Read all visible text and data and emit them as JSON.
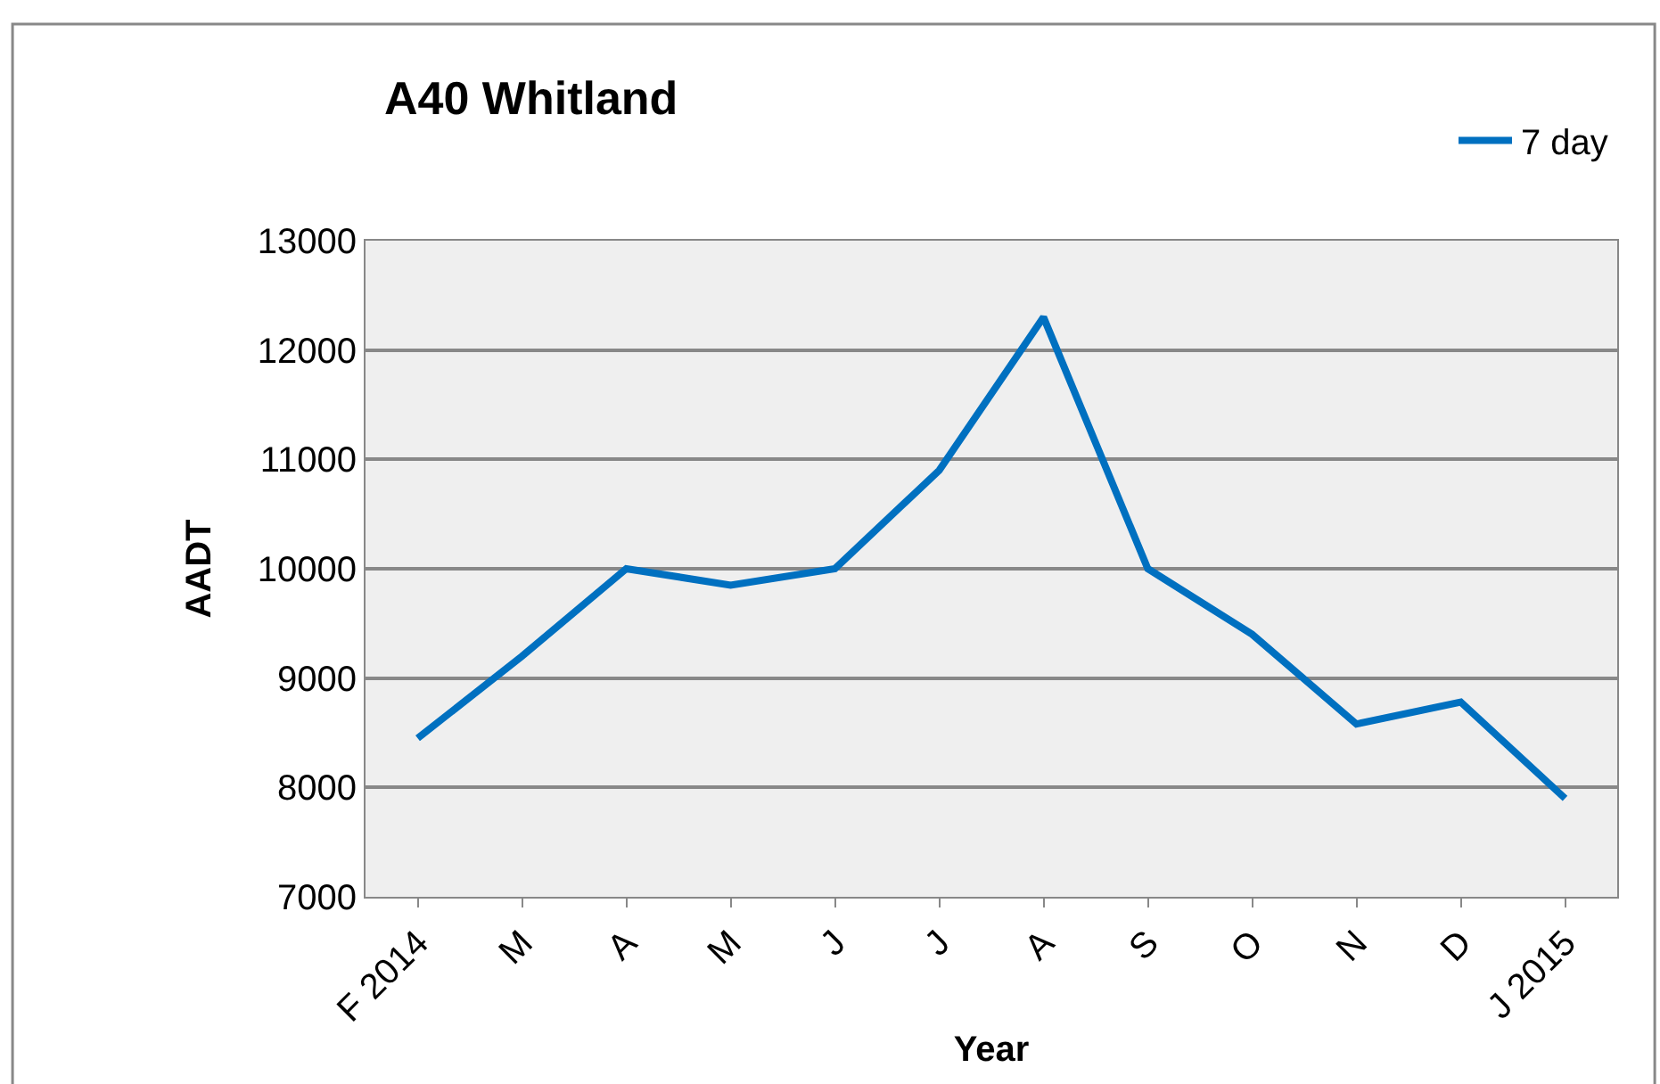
{
  "chart_data": {
    "type": "line",
    "title": "A40 Whitland",
    "xlabel": "Year",
    "ylabel": "AADT",
    "categories": [
      "F 2014",
      "M",
      "A",
      "M",
      "J",
      "J",
      "A",
      "S",
      "O",
      "N",
      "D",
      "J 2015"
    ],
    "series": [
      {
        "name": "7 day",
        "color": "#0070c0",
        "values": [
          8450,
          9200,
          10000,
          9850,
          10000,
          10900,
          12300,
          10000,
          9400,
          8580,
          8780,
          7900
        ]
      }
    ],
    "ylim": [
      7000,
      13000
    ],
    "yticks": [
      7000,
      8000,
      9000,
      10000,
      11000,
      12000,
      13000
    ],
    "grid": "y",
    "legend": "top right",
    "marker": "none",
    "line_style": "solid"
  }
}
